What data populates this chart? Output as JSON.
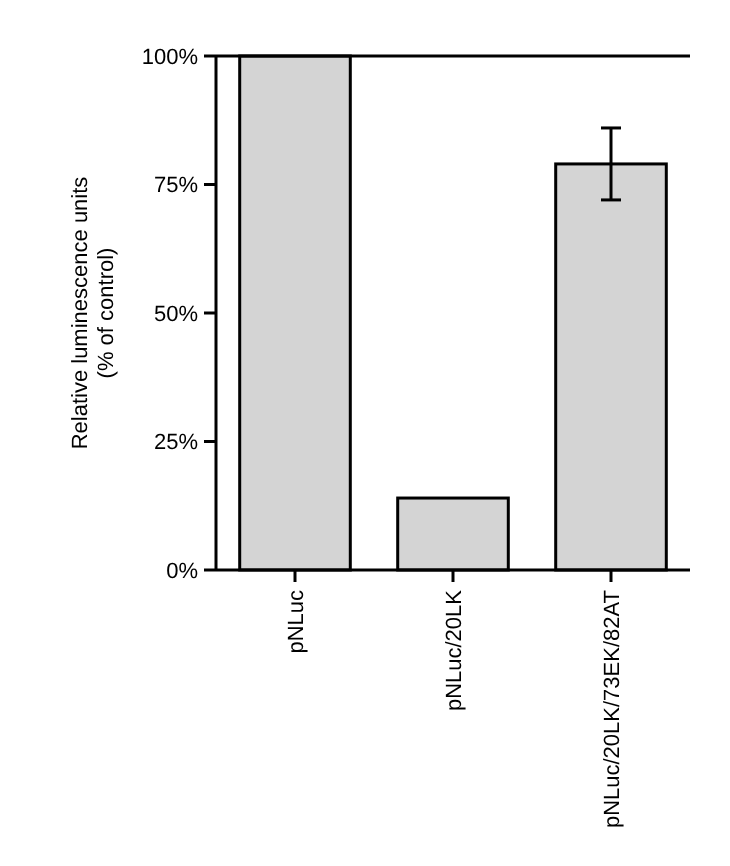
{
  "chart_data": {
    "type": "bar",
    "ylabel": "Relative luminescence units\n(% of control)",
    "categories": [
      "pNLuc",
      "pNLuc/20LK",
      "pNLuc/20LK/73EK/82AT"
    ],
    "values": [
      100,
      14,
      79
    ],
    "errors": [
      null,
      null,
      [
        72,
        86
      ]
    ],
    "color": "#d4d4d4",
    "ylim": [
      0,
      100
    ],
    "yticks": [
      {
        "value": 0,
        "label": "0%"
      },
      {
        "value": 25,
        "label": "25%"
      },
      {
        "value": 50,
        "label": "50%"
      },
      {
        "value": 75,
        "label": "75%"
      },
      {
        "value": 100,
        "label": "100%"
      }
    ]
  }
}
